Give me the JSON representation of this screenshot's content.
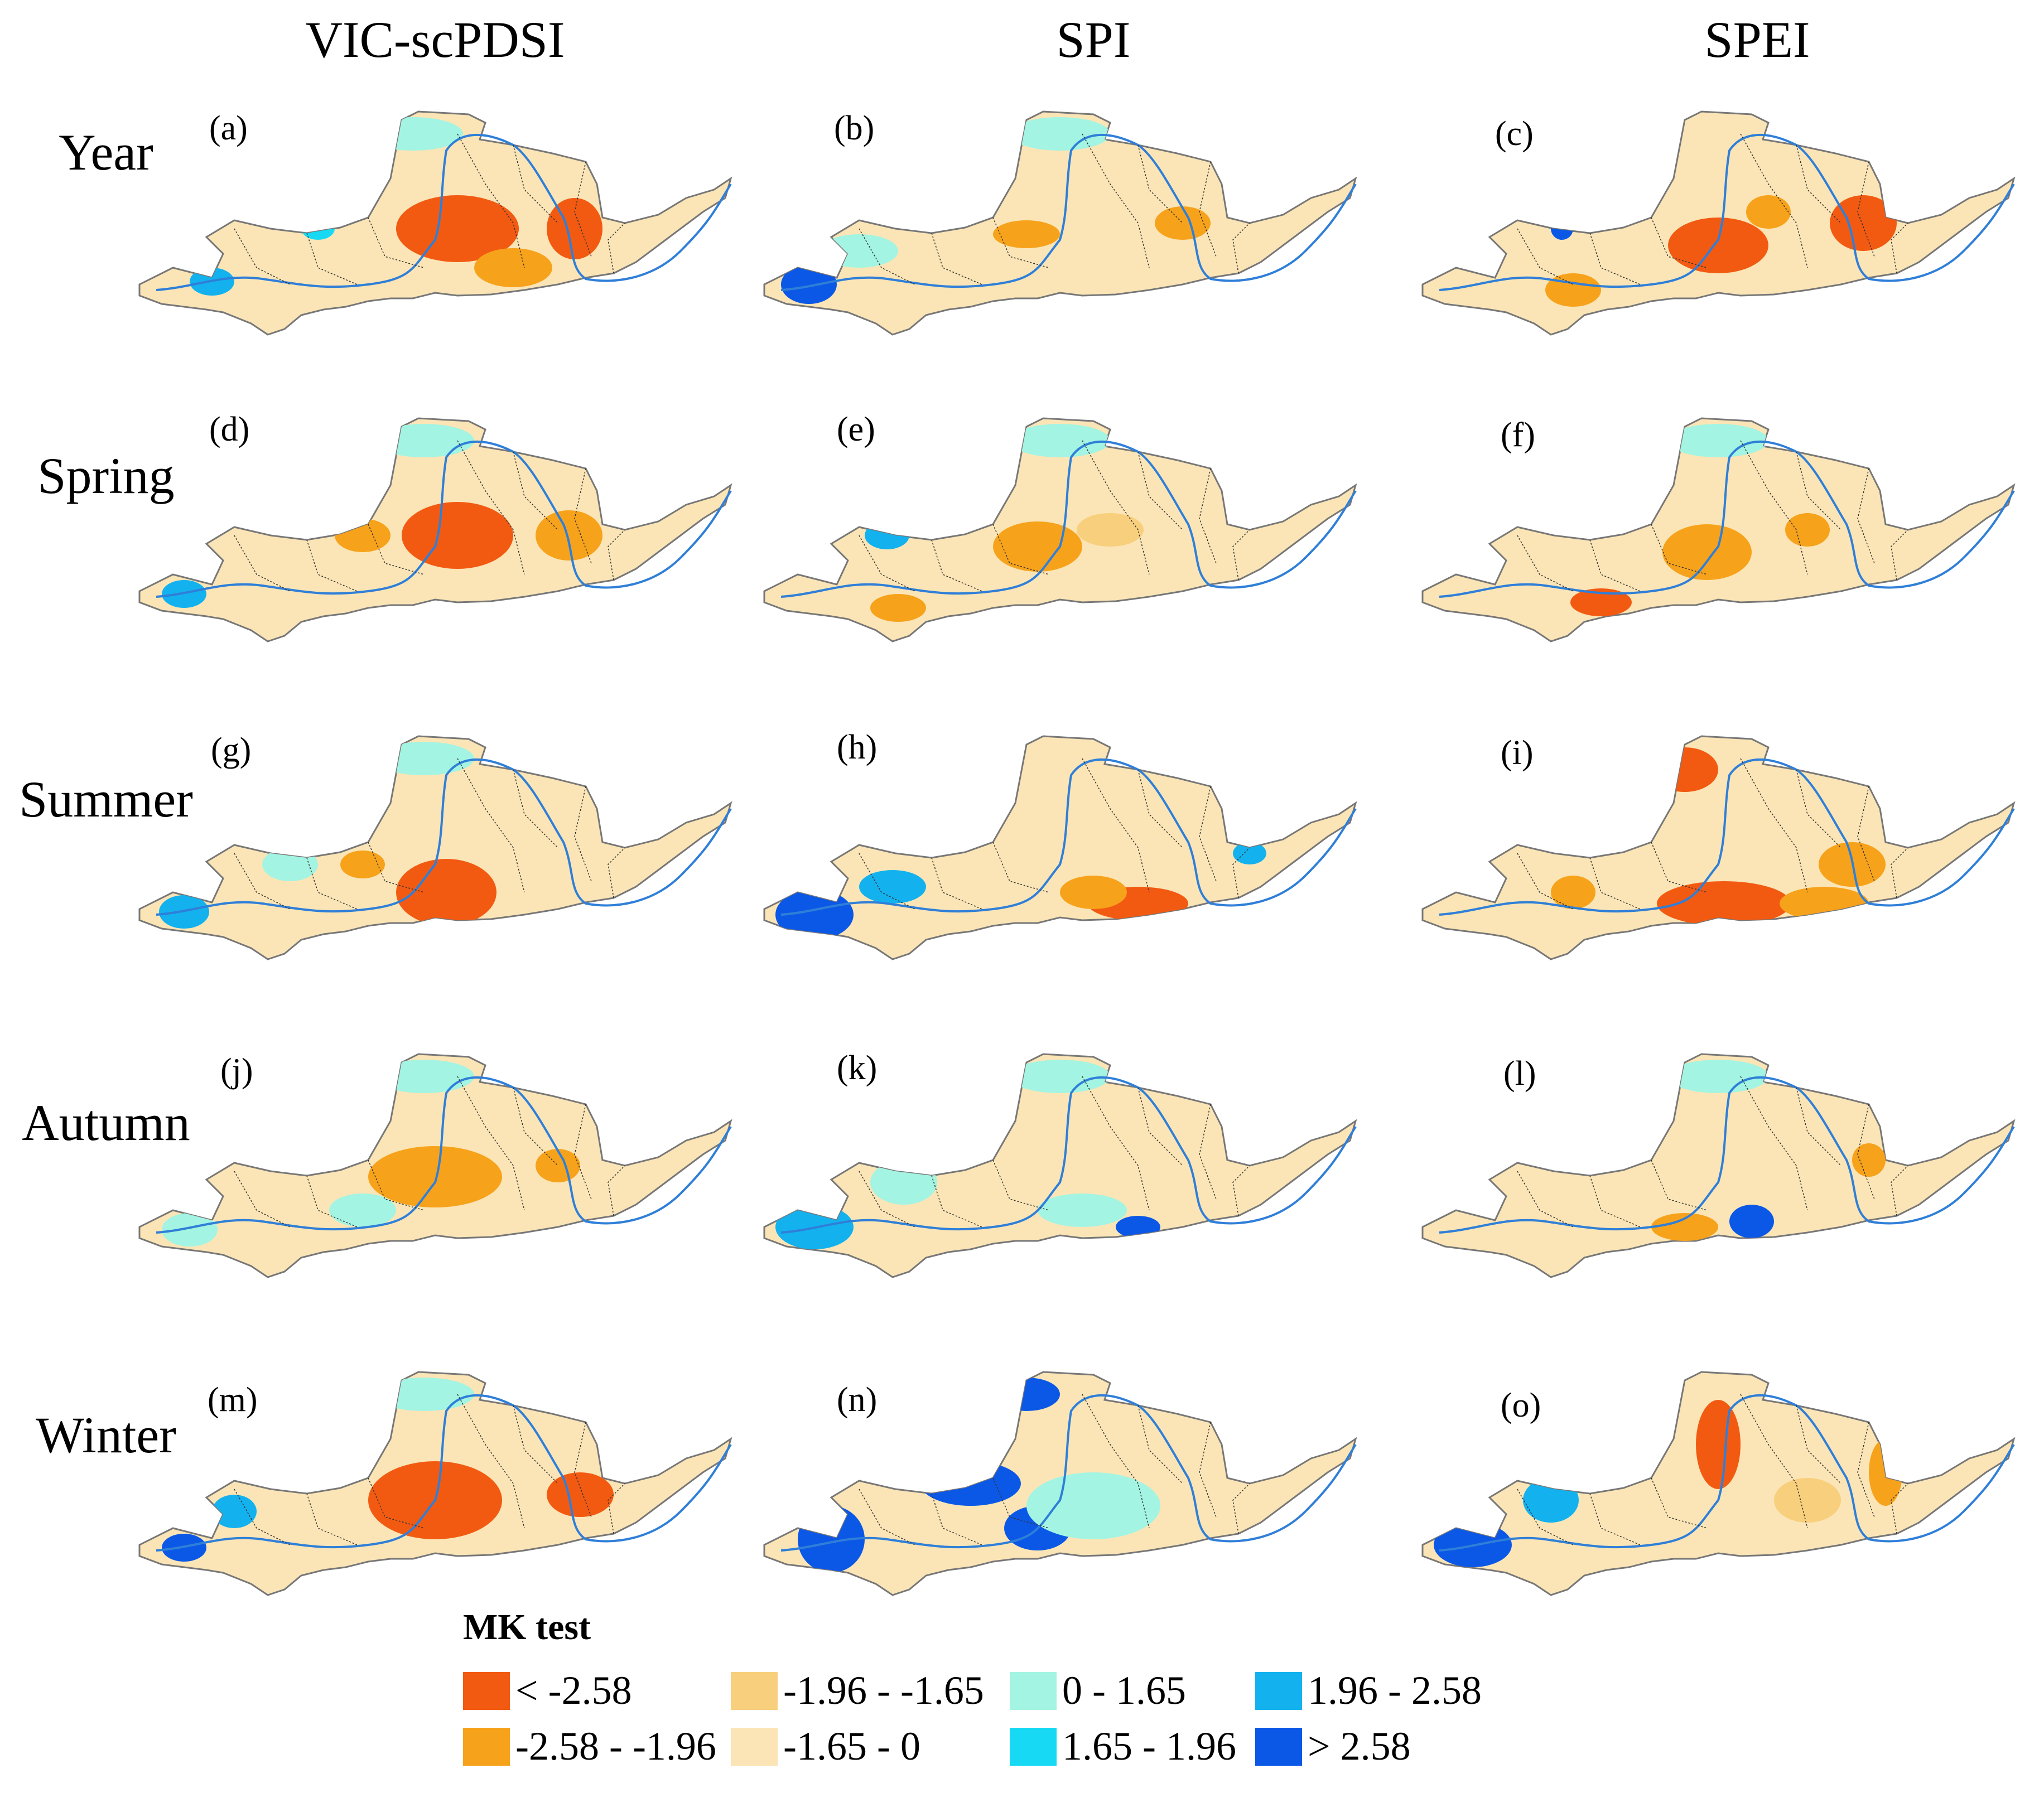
{
  "columns": [
    "VIC-scPDSI",
    "SPI",
    "SPEI"
  ],
  "rows": [
    "Year",
    "Spring",
    "Summer",
    "Autumn",
    "Winter"
  ],
  "panels": [
    "(a)",
    "(b)",
    "(c)",
    "(d)",
    "(e)",
    "(f)",
    "(g)",
    "(h)",
    "(i)",
    "(j)",
    "(k)",
    "(l)",
    "(m)",
    "(n)",
    "(o)"
  ],
  "legend": {
    "title": "MK test",
    "classes": [
      {
        "label": "< -2.58",
        "color": "#f25a12"
      },
      {
        "label": "-2.58 - -1.96",
        "color": "#f7a21b"
      },
      {
        "label": "-1.96 - -1.65",
        "color": "#f8cf7c"
      },
      {
        "label": "-1.65 - 0",
        "color": "#fbe5b6"
      },
      {
        "label": "0 - 1.65",
        "color": "#a3f4e2"
      },
      {
        "label": "1.65 - 1.96",
        "color": "#17d9f3"
      },
      {
        "label": "1.96 - 2.58",
        "color": "#13b2ef"
      },
      {
        "label": "> 2.58",
        "color": "#0b58e6"
      }
    ]
  }
}
